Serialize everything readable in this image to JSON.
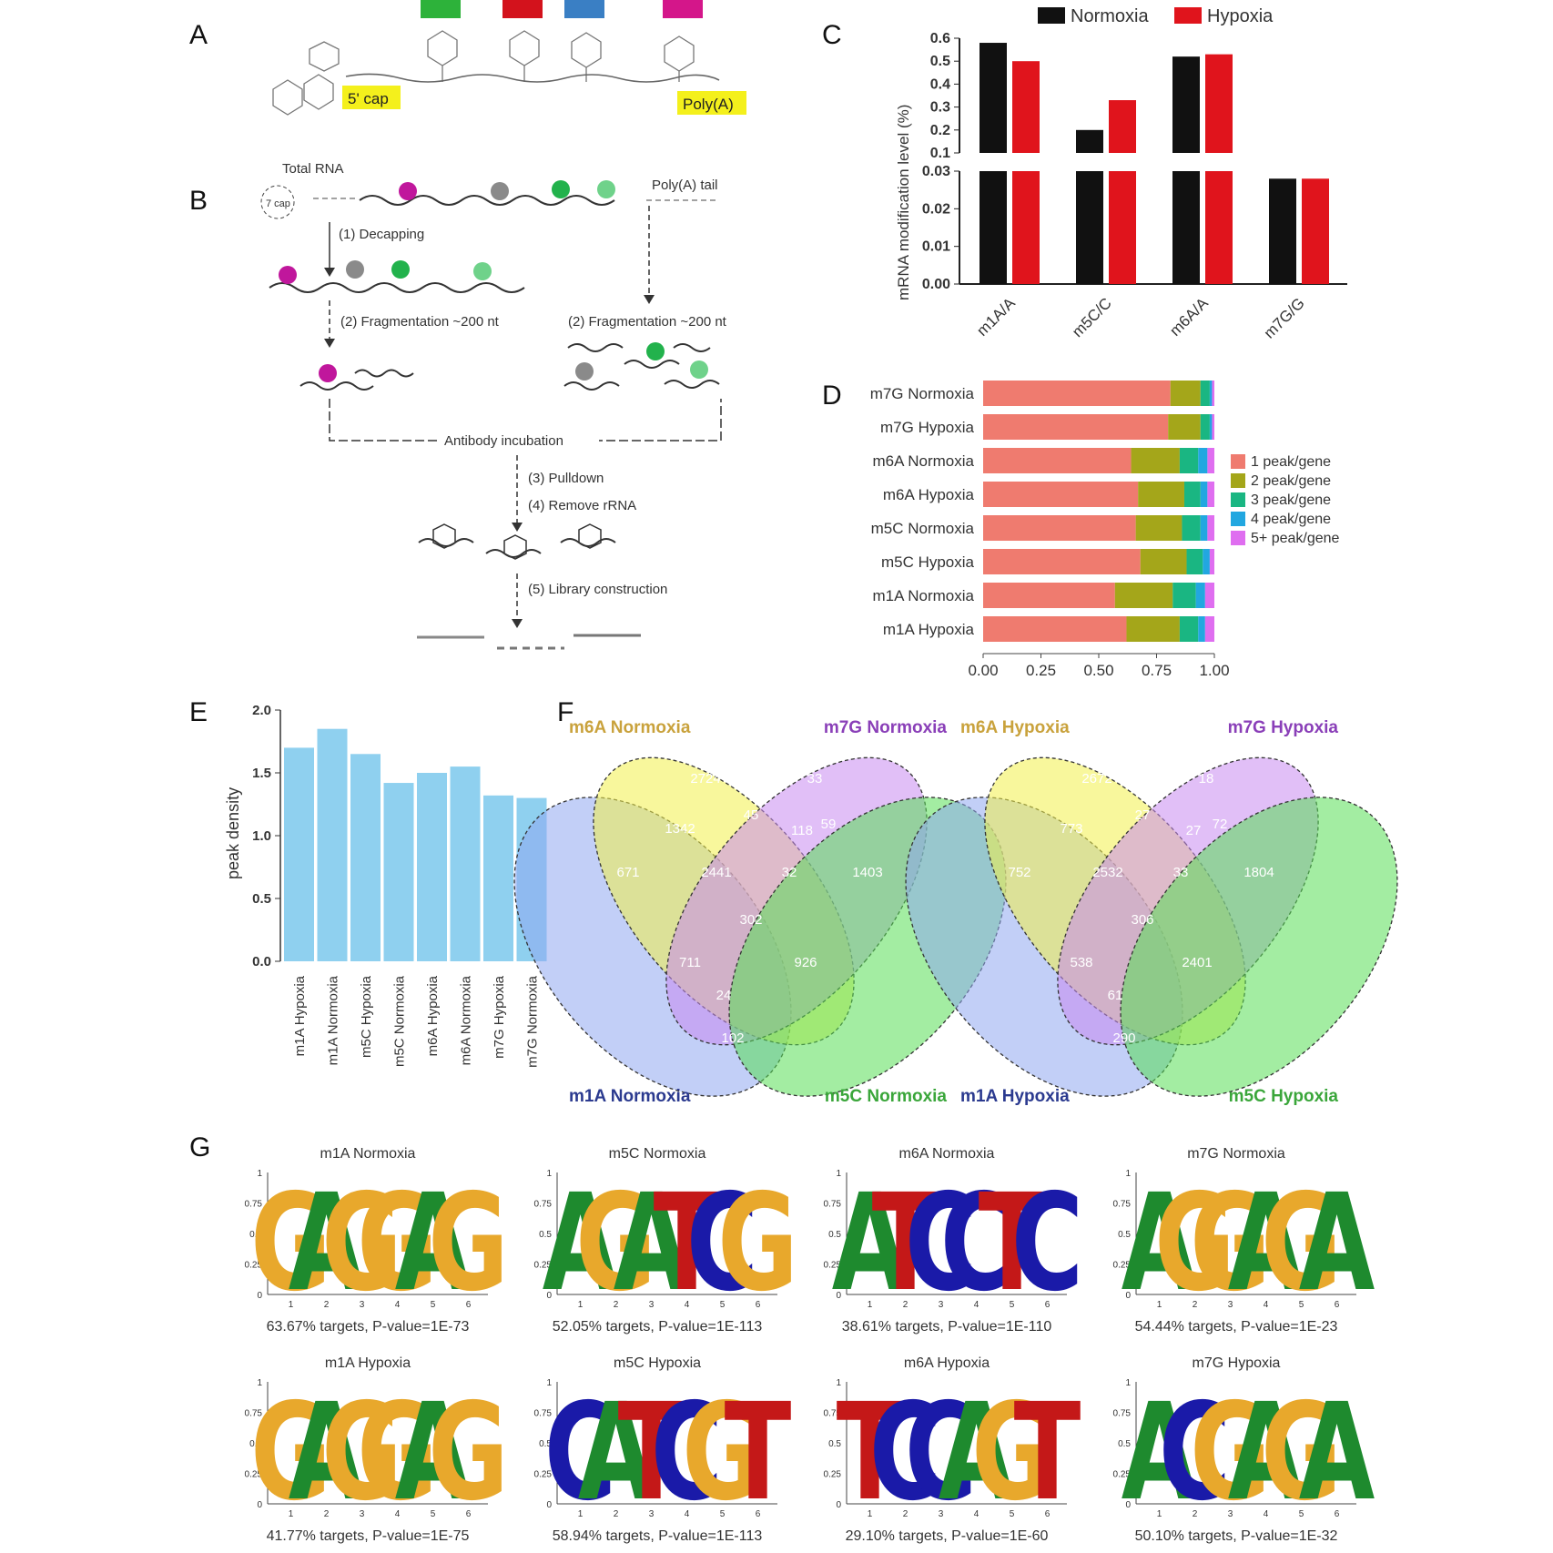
{
  "panel_labels": [
    "A",
    "B",
    "C",
    "D",
    "E",
    "F",
    "G"
  ],
  "panelA": {
    "cap_label": "5' cap",
    "polya_label": "Poly(A)"
  },
  "panelB": {
    "total_rna": "Total RNA",
    "cap_tag": "7 cap",
    "polya_tail": "Poly(A) tail",
    "step1": "(1) Decapping",
    "step2a": "(2) Fragmentation ~200 nt",
    "step2b": "(2) Fragmentation ~200 nt",
    "antibody": "Antibody incubation",
    "step3": "(3) Pulldown",
    "step4": "(4) Remove rRNA",
    "step5": "(5) Library construction",
    "colors": {
      "magenta": "#c0179c",
      "grey": "#8a8a8a",
      "green": "#22b24c",
      "lightgreen": "#6fd28a"
    }
  },
  "chart_data": [
    {
      "id": "C",
      "type": "bar",
      "categories": [
        "m1A/A",
        "m5C/C",
        "m6A/A",
        "m7G/G"
      ],
      "ylabel": "mRNA modification level (%)",
      "series": [
        {
          "name": "Normoxia",
          "color": "#111111",
          "values": [
            0.58,
            0.2,
            0.52,
            0.028
          ]
        },
        {
          "name": "Hypoxia",
          "color": "#e0141c",
          "values": [
            0.5,
            0.33,
            0.53,
            0.028
          ]
        }
      ],
      "axis_break": {
        "lower": [
          0.0,
          0.03
        ],
        "upper": [
          0.1,
          0.6
        ]
      },
      "lower_ticks": [
        "0.00",
        "0.01",
        "0.02",
        "0.03"
      ],
      "upper_ticks": [
        "0.1",
        "0.2",
        "0.3",
        "0.4",
        "0.5",
        "0.6"
      ],
      "legend": "top"
    },
    {
      "id": "D",
      "type": "bar",
      "orientation": "horizontal-stacked",
      "categories": [
        "m7G Normoxia",
        "m7G Hypoxia",
        "m6A Normoxia",
        "m6A Hypoxia",
        "m5C Normoxia",
        "m5C Hypoxia",
        "m1A Normoxia",
        "m1A Hypoxia"
      ],
      "series": [
        {
          "name": "1 peak/gene",
          "color": "#ef7b6f",
          "values": [
            0.81,
            0.8,
            0.64,
            0.67,
            0.66,
            0.68,
            0.57,
            0.62
          ]
        },
        {
          "name": "2 peak/gene",
          "color": "#a4a61a",
          "values": [
            0.13,
            0.14,
            0.21,
            0.2,
            0.2,
            0.2,
            0.25,
            0.23
          ]
        },
        {
          "name": "3 peak/gene",
          "color": "#1ab682",
          "values": [
            0.04,
            0.04,
            0.08,
            0.07,
            0.08,
            0.07,
            0.1,
            0.08
          ]
        },
        {
          "name": "4 peak/gene",
          "color": "#22a7e0",
          "values": [
            0.01,
            0.01,
            0.04,
            0.03,
            0.03,
            0.03,
            0.04,
            0.03
          ]
        },
        {
          "name": "5+ peak/gene",
          "color": "#df6ef0",
          "values": [
            0.01,
            0.01,
            0.03,
            0.03,
            0.03,
            0.02,
            0.04,
            0.04
          ]
        }
      ],
      "xticks": [
        "0.00",
        "0.25",
        "0.50",
        "0.75",
        "1.00"
      ],
      "legend": "right"
    },
    {
      "id": "E",
      "type": "bar",
      "categories": [
        "m1A Hypoxia",
        "m1A Normoxia",
        "m5C Hypoxia",
        "m5C Normoxia",
        "m6A Hypoxia",
        "m6A Normoxia",
        "m7G Hypoxia",
        "m7G Normoxia"
      ],
      "values": [
        1.7,
        1.85,
        1.65,
        1.42,
        1.5,
        1.55,
        1.32,
        1.3
      ],
      "ylabel": "peak density",
      "ylim": [
        0,
        2.0
      ],
      "yticks": [
        "0.0",
        "0.5",
        "1.0",
        "1.5",
        "2.0"
      ],
      "color": "#8fd0ef"
    }
  ],
  "panelF": {
    "left": {
      "labels": {
        "tl": "m6A Normoxia",
        "tr": "m7G Normoxia",
        "bl": "m1A Normoxia",
        "br": "m5C Normoxia"
      },
      "numbers": [
        "2724",
        "33",
        "1342",
        "45",
        "118",
        "671",
        "2441",
        "302",
        "1403",
        "711",
        "24",
        "32",
        "102",
        "926",
        "59"
      ]
    },
    "right": {
      "labels": {
        "tl": "m6A Hypoxia",
        "tr": "m7G Hypoxia",
        "bl": "m1A Hypoxia",
        "br": "m5C Hypoxia"
      },
      "numbers": [
        "2672",
        "18",
        "773",
        "27",
        "27",
        "752",
        "2532",
        "306",
        "1804",
        "538",
        "61",
        "33",
        "290",
        "2401",
        "72"
      ]
    },
    "colors": {
      "m1A": "#8fa8f0",
      "m6A": "#f3f04a",
      "m7G": "#c98af0",
      "m5C": "#57df55"
    },
    "label_colors": {
      "m6A": "#c9a23c",
      "m7G": "#8a3fb8",
      "m1A": "#2b3a8f",
      "m5C": "#3aa63a"
    }
  },
  "panelG": {
    "motifs": [
      {
        "title": "m1A Normoxia",
        "seq": "GAGGAG",
        "caption": "63.67% targets, P-value=1E-73"
      },
      {
        "title": "m5C Normoxia",
        "seq": "AGATCG",
        "caption": "52.05% targets, P-value=1E-113"
      },
      {
        "title": "m6A Normoxia",
        "seq": "ATCCTC",
        "caption": "38.61% targets, P-value=1E-110"
      },
      {
        "title": "m7G Normoxia",
        "seq": "AGGAGA",
        "caption": "54.44% targets, P-value=1E-23"
      },
      {
        "title": "m1A Hypoxia",
        "seq": "GAGGAG",
        "caption": "41.77% targets, P-value=1E-75"
      },
      {
        "title": "m5C Hypoxia",
        "seq": "CATCGT",
        "caption": "58.94% targets, P-value=1E-113"
      },
      {
        "title": "m6A Hypoxia",
        "seq": "TCCAGT",
        "caption": "29.10% targets, P-value=1E-60"
      },
      {
        "title": "m7G Hypoxia",
        "seq": "ACGAGA",
        "caption": "50.10% targets, P-value=1E-32"
      }
    ],
    "yticks": [
      "0",
      "0.25",
      "0.5",
      "0.75",
      "1"
    ],
    "xticks": [
      "1",
      "2",
      "3",
      "4",
      "5",
      "6"
    ],
    "letter_colors": {
      "A": "#1e8a2e",
      "C": "#1a1aa8",
      "G": "#e8a82c",
      "T": "#c41818"
    }
  }
}
